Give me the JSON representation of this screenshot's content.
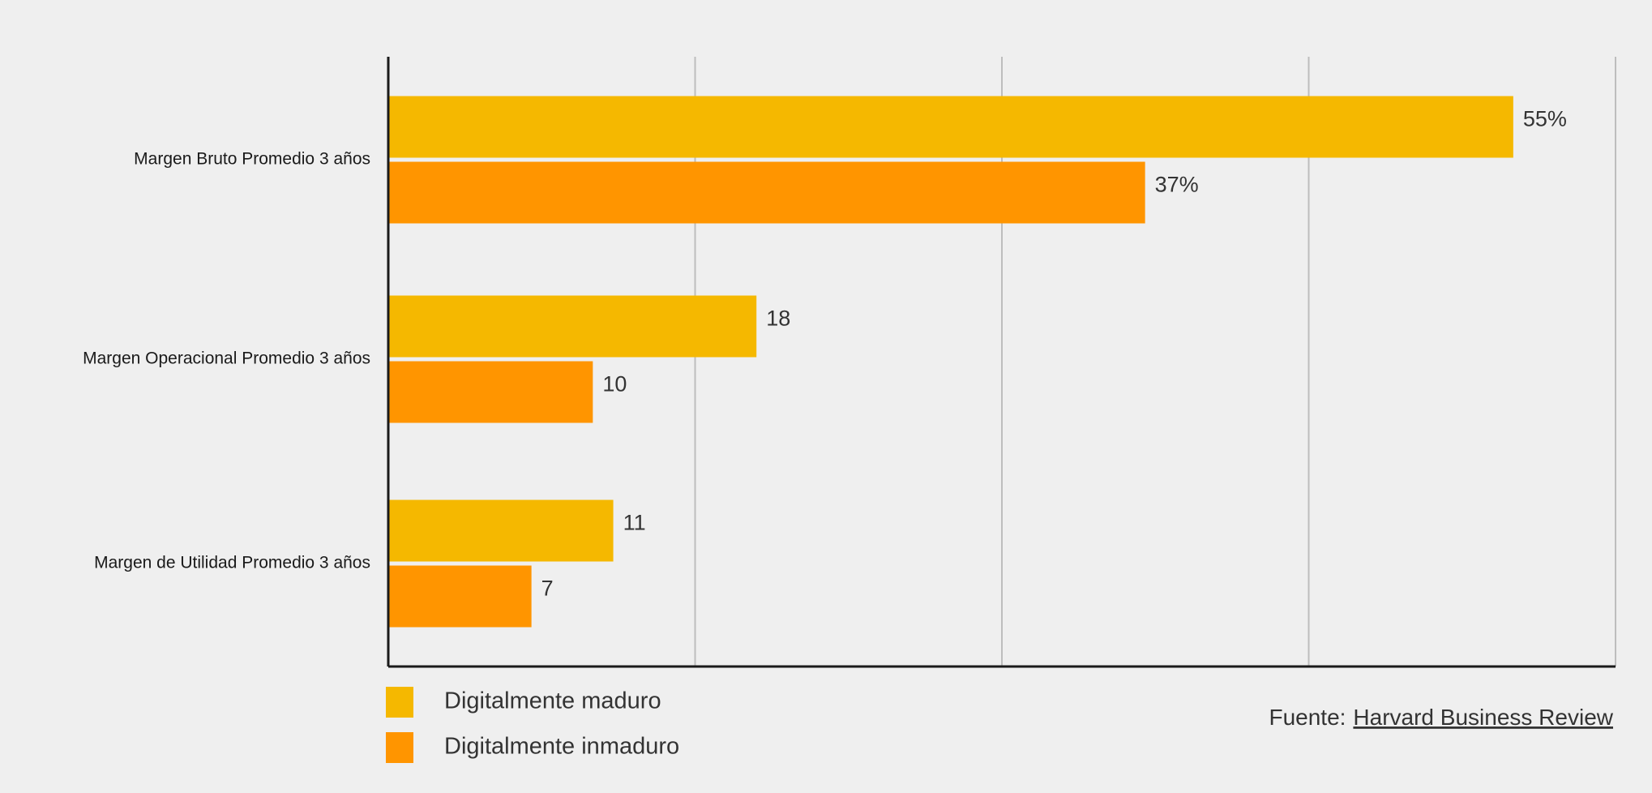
{
  "chart_data": {
    "type": "bar",
    "orientation": "horizontal",
    "categories": [
      "Margen Bruto Promedio 3 años",
      "Margen Operacional Promedio 3 años",
      "Margen de Utilidad Promedio 3 años"
    ],
    "series": [
      {
        "name": "Digitalmente maduro",
        "values": [
          55,
          18,
          11
        ],
        "labels": [
          "55%",
          "18",
          "11"
        ],
        "color": "#f5b800"
      },
      {
        "name": "Digitalmente inmaduro",
        "values": [
          37,
          10,
          7
        ],
        "labels": [
          "37%",
          "10",
          "7"
        ],
        "color": "#ff9500"
      }
    ],
    "xlim": [
      0,
      60
    ],
    "x_gridlines": [
      15,
      30,
      45,
      60
    ],
    "x_tick_labels_shown": false,
    "grid": true,
    "legend_position": "bottom-left",
    "title": "",
    "xlabel": "",
    "ylabel": ""
  },
  "source": {
    "prefix": "Fuente:",
    "link_text": "Harvard Business Review"
  },
  "colors": {
    "background": "#efefef",
    "gridline": "#bdbdbd",
    "axis": "#1a1a1a"
  }
}
